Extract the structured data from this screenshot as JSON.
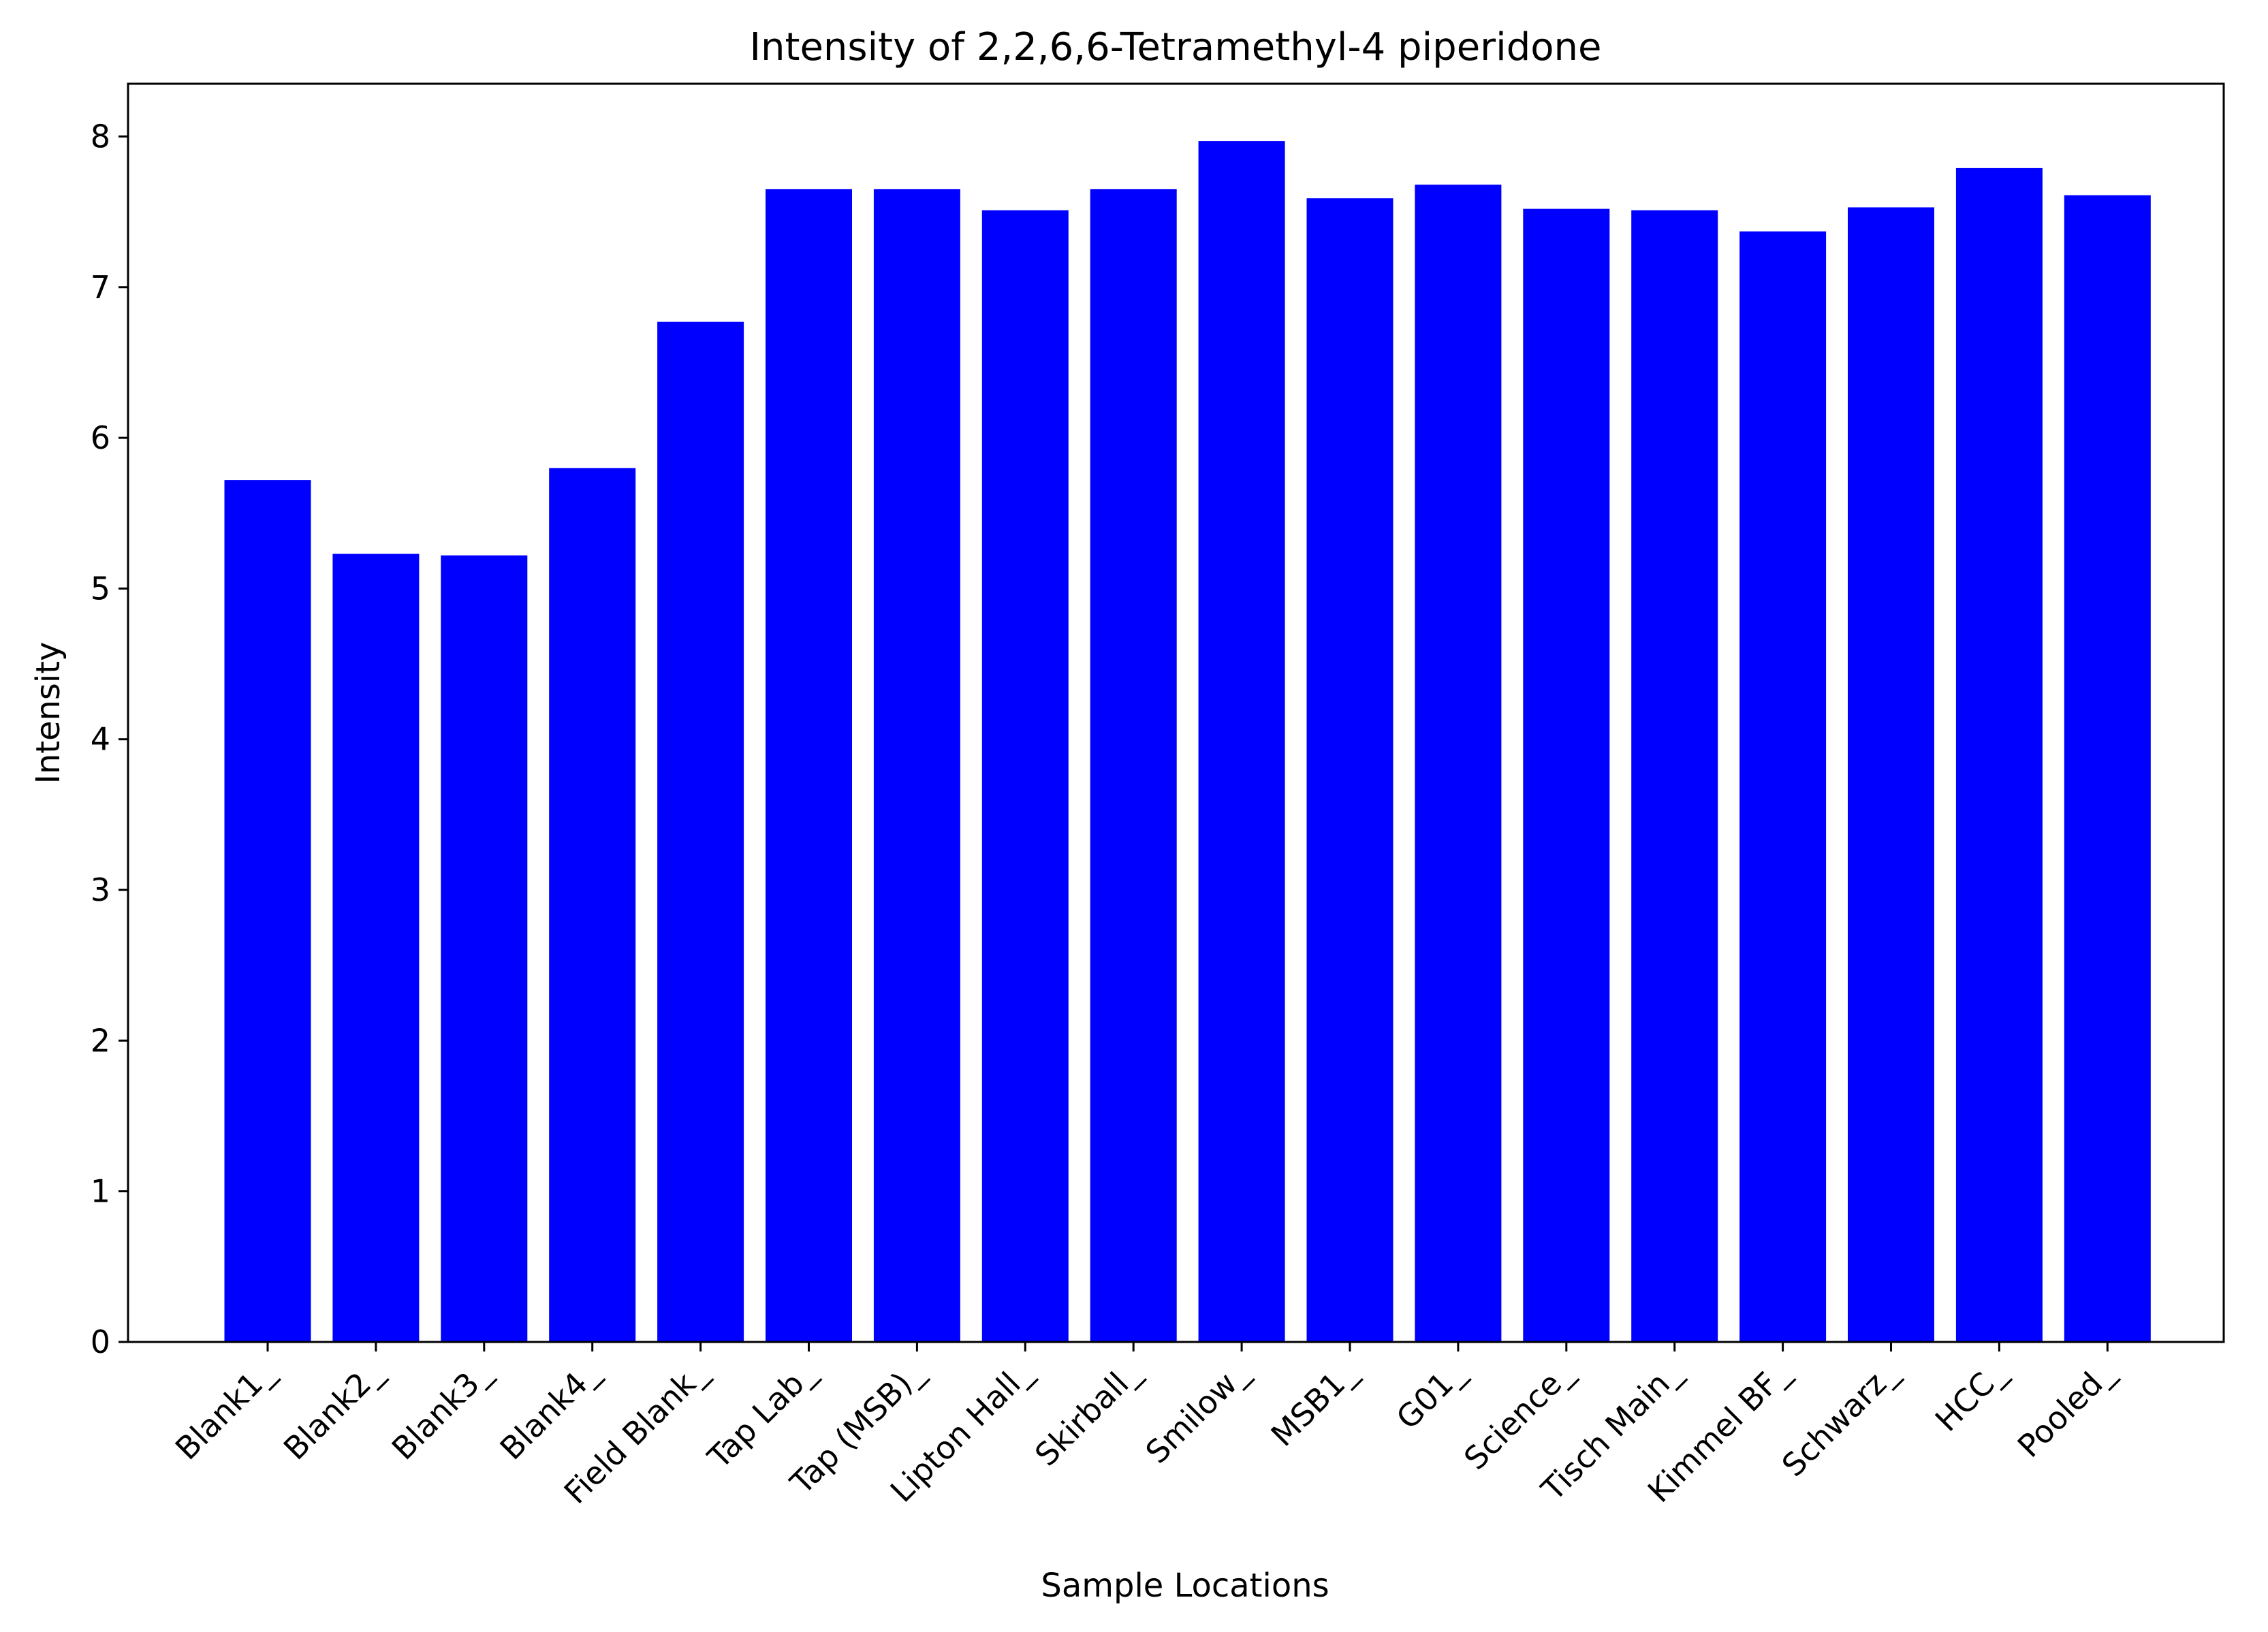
{
  "chart_data": {
    "type": "bar",
    "title": "Intensity of 2,2,6,6-Tetramethyl-4 piperidone",
    "xlabel": "Sample Locations",
    "ylabel": "Intensity",
    "categories": [
      "Blank1_",
      "Blank2_",
      "Blank3_",
      "Blank4_",
      "Field Blank_",
      "Tap Lab_",
      "Tap (MSB)_",
      "Lipton Hall_",
      "Skirball_",
      "Smilow_",
      "MSB1_",
      "G01_",
      "Science_",
      "Tisch Main_",
      "Kimmel BF_",
      "Schwarz_",
      "HCC_",
      "Pooled_"
    ],
    "values": [
      5.72,
      5.23,
      5.22,
      5.8,
      6.77,
      7.65,
      7.65,
      7.51,
      7.65,
      7.97,
      7.59,
      7.68,
      7.52,
      7.51,
      7.37,
      7.53,
      7.79,
      7.61
    ],
    "ylim": [
      0,
      8.35
    ],
    "yticks": [
      "0",
      "1",
      "2",
      "3",
      "4",
      "5",
      "6",
      "7",
      "8"
    ],
    "bar_color": "#0000ff",
    "grid": false,
    "legend": "none"
  }
}
